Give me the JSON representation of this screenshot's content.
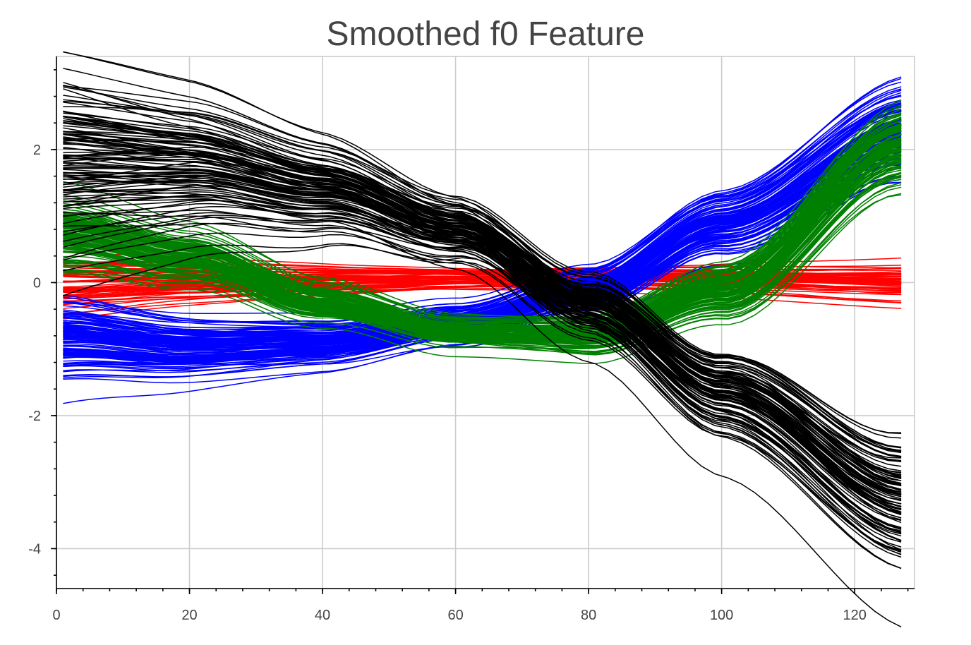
{
  "chart_data": {
    "type": "line",
    "title": "Smoothed f0 Feature",
    "xlabel": "",
    "ylabel": "",
    "xlim": [
      0,
      129
    ],
    "ylim": [
      -4.6,
      3.4
    ],
    "x_ticks": [
      0,
      20,
      40,
      60,
      80,
      100,
      120
    ],
    "x_tick_labels": [
      "0",
      "20",
      "40",
      "60",
      "80",
      "100",
      "120"
    ],
    "y_ticks": [
      -4,
      -2,
      0,
      2
    ],
    "y_tick_labels": [
      "-4",
      "-2",
      "0",
      "2"
    ],
    "grid": true,
    "legend": "none",
    "x_range": [
      1,
      128
    ],
    "groups": [
      {
        "color": "#ff0000",
        "count": 60,
        "mean_curve": {
          "x": [
            1,
            20,
            40,
            60,
            80,
            100,
            128
          ],
          "y": [
            -0.05,
            0.0,
            0.02,
            0.05,
            0.08,
            0.05,
            0.0
          ]
        },
        "spread_at_x": {
          "x": [
            1,
            64,
            128
          ],
          "y": [
            0.25,
            0.1,
            0.15
          ]
        }
      },
      {
        "color": "#0000ff",
        "count": 120,
        "mean_curve": {
          "x": [
            1,
            20,
            40,
            60,
            80,
            100,
            128
          ],
          "y": [
            -0.8,
            -0.95,
            -0.9,
            -0.6,
            -0.1,
            0.9,
            2.3
          ]
        },
        "spread_at_x": {
          "x": [
            1,
            64,
            128
          ],
          "y": [
            0.3,
            0.15,
            0.35
          ]
        }
      },
      {
        "color": "#008000",
        "count": 120,
        "mean_curve": {
          "x": [
            1,
            20,
            40,
            60,
            80,
            100,
            128
          ],
          "y": [
            0.7,
            0.35,
            -0.3,
            -0.75,
            -0.8,
            -0.1,
            2.1
          ]
        },
        "spread_at_x": {
          "x": [
            1,
            64,
            128
          ],
          "y": [
            0.25,
            0.12,
            0.3
          ]
        }
      },
      {
        "color": "#000000",
        "count": 110,
        "mean_curve": {
          "x": [
            1,
            20,
            40,
            60,
            80,
            100,
            128
          ],
          "y": [
            1.8,
            1.75,
            1.4,
            0.8,
            -0.3,
            -1.6,
            -3.2
          ]
        },
        "spread_at_x": {
          "x": [
            1,
            64,
            128
          ],
          "y": [
            0.7,
            0.15,
            0.5
          ]
        }
      }
    ]
  }
}
